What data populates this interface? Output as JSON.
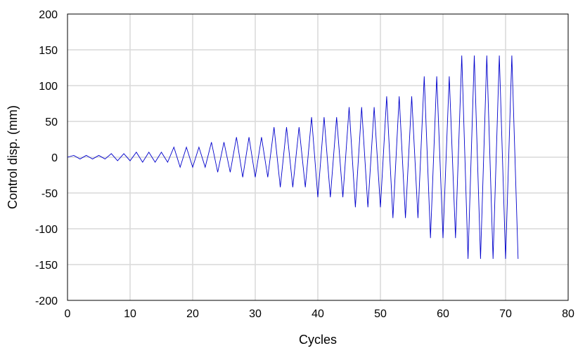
{
  "chart_data": {
    "type": "line",
    "title": "",
    "xlabel": "Cycles",
    "ylabel": "Control disp. (mm)",
    "xlim": [
      0,
      80
    ],
    "ylim": [
      -200,
      200
    ],
    "xticks": [
      0,
      10,
      20,
      30,
      40,
      50,
      60,
      70,
      80
    ],
    "yticks": [
      200,
      150,
      100,
      50,
      0,
      -50,
      -100,
      -150,
      -200
    ],
    "grid": true,
    "legend": "none",
    "series": [
      {
        "color": "#0000cc",
        "x": [
          0,
          1,
          2,
          3,
          4,
          5,
          6,
          7,
          8,
          9,
          10,
          11,
          12,
          13,
          14,
          15,
          16,
          17,
          18,
          19,
          20,
          21,
          22,
          23,
          24,
          25,
          26,
          27,
          28,
          29,
          30,
          31,
          32,
          33,
          34,
          35,
          36,
          37,
          38,
          39,
          40,
          41,
          42,
          43,
          44,
          45,
          46,
          47,
          48,
          49,
          50,
          51,
          52,
          53,
          54,
          55,
          56,
          57,
          58,
          59,
          60,
          61,
          62,
          63,
          64,
          65,
          66,
          67,
          68,
          69,
          70,
          71,
          72
        ],
        "y": [
          0,
          2.5,
          -2.5,
          2.5,
          -2.5,
          2.5,
          -2.5,
          5,
          -5,
          5,
          -5,
          7,
          -7,
          7,
          -7,
          7,
          -7,
          14,
          -14,
          14,
          -14,
          14,
          -14,
          21,
          -21,
          21,
          -21,
          28,
          -28,
          28,
          -28,
          28,
          -28,
          42,
          -42,
          42,
          -42,
          42,
          -42,
          56,
          -56,
          56,
          -56,
          56,
          -56,
          70,
          -70,
          70,
          -70,
          70,
          -70,
          85,
          -85,
          85,
          -85,
          85,
          -85,
          113,
          -113,
          113,
          -113,
          113,
          -113,
          142,
          -142,
          142,
          -142,
          142,
          -142,
          142,
          -142,
          142,
          -142
        ]
      }
    ]
  }
}
